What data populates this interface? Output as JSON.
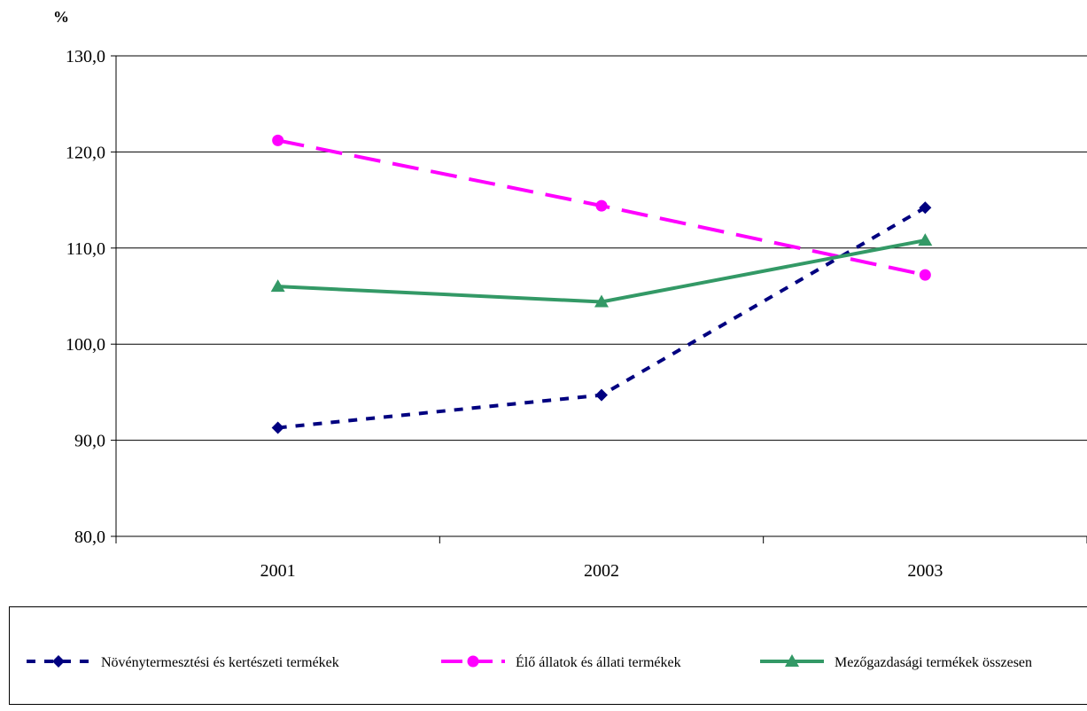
{
  "chart_data": {
    "type": "line",
    "unit_label": "%",
    "categories": [
      "2001",
      "2002",
      "2003"
    ],
    "y_ticks": [
      "130,0",
      "120,0",
      "110,0",
      "100,0",
      "90,0",
      "80,0"
    ],
    "ylim": [
      80,
      130
    ],
    "y_tick_step": 10,
    "grid": true,
    "legend_position": "bottom",
    "series": [
      {
        "name": "Növénytermesztési és kertészeti termékek",
        "values": [
          91.3,
          94.7,
          114.2
        ],
        "color": "#000080",
        "line_style": "dotted",
        "marker": "diamond"
      },
      {
        "name": "Élő állatok és állati termékek",
        "values": [
          121.2,
          114.4,
          107.2
        ],
        "color": "#ff00ff",
        "line_style": "dashed",
        "marker": "circle"
      },
      {
        "name": "Mezőgazdasági termékek összesen",
        "values": [
          106.0,
          104.4,
          110.8
        ],
        "color": "#339966",
        "line_style": "solid",
        "marker": "triangle"
      }
    ]
  }
}
